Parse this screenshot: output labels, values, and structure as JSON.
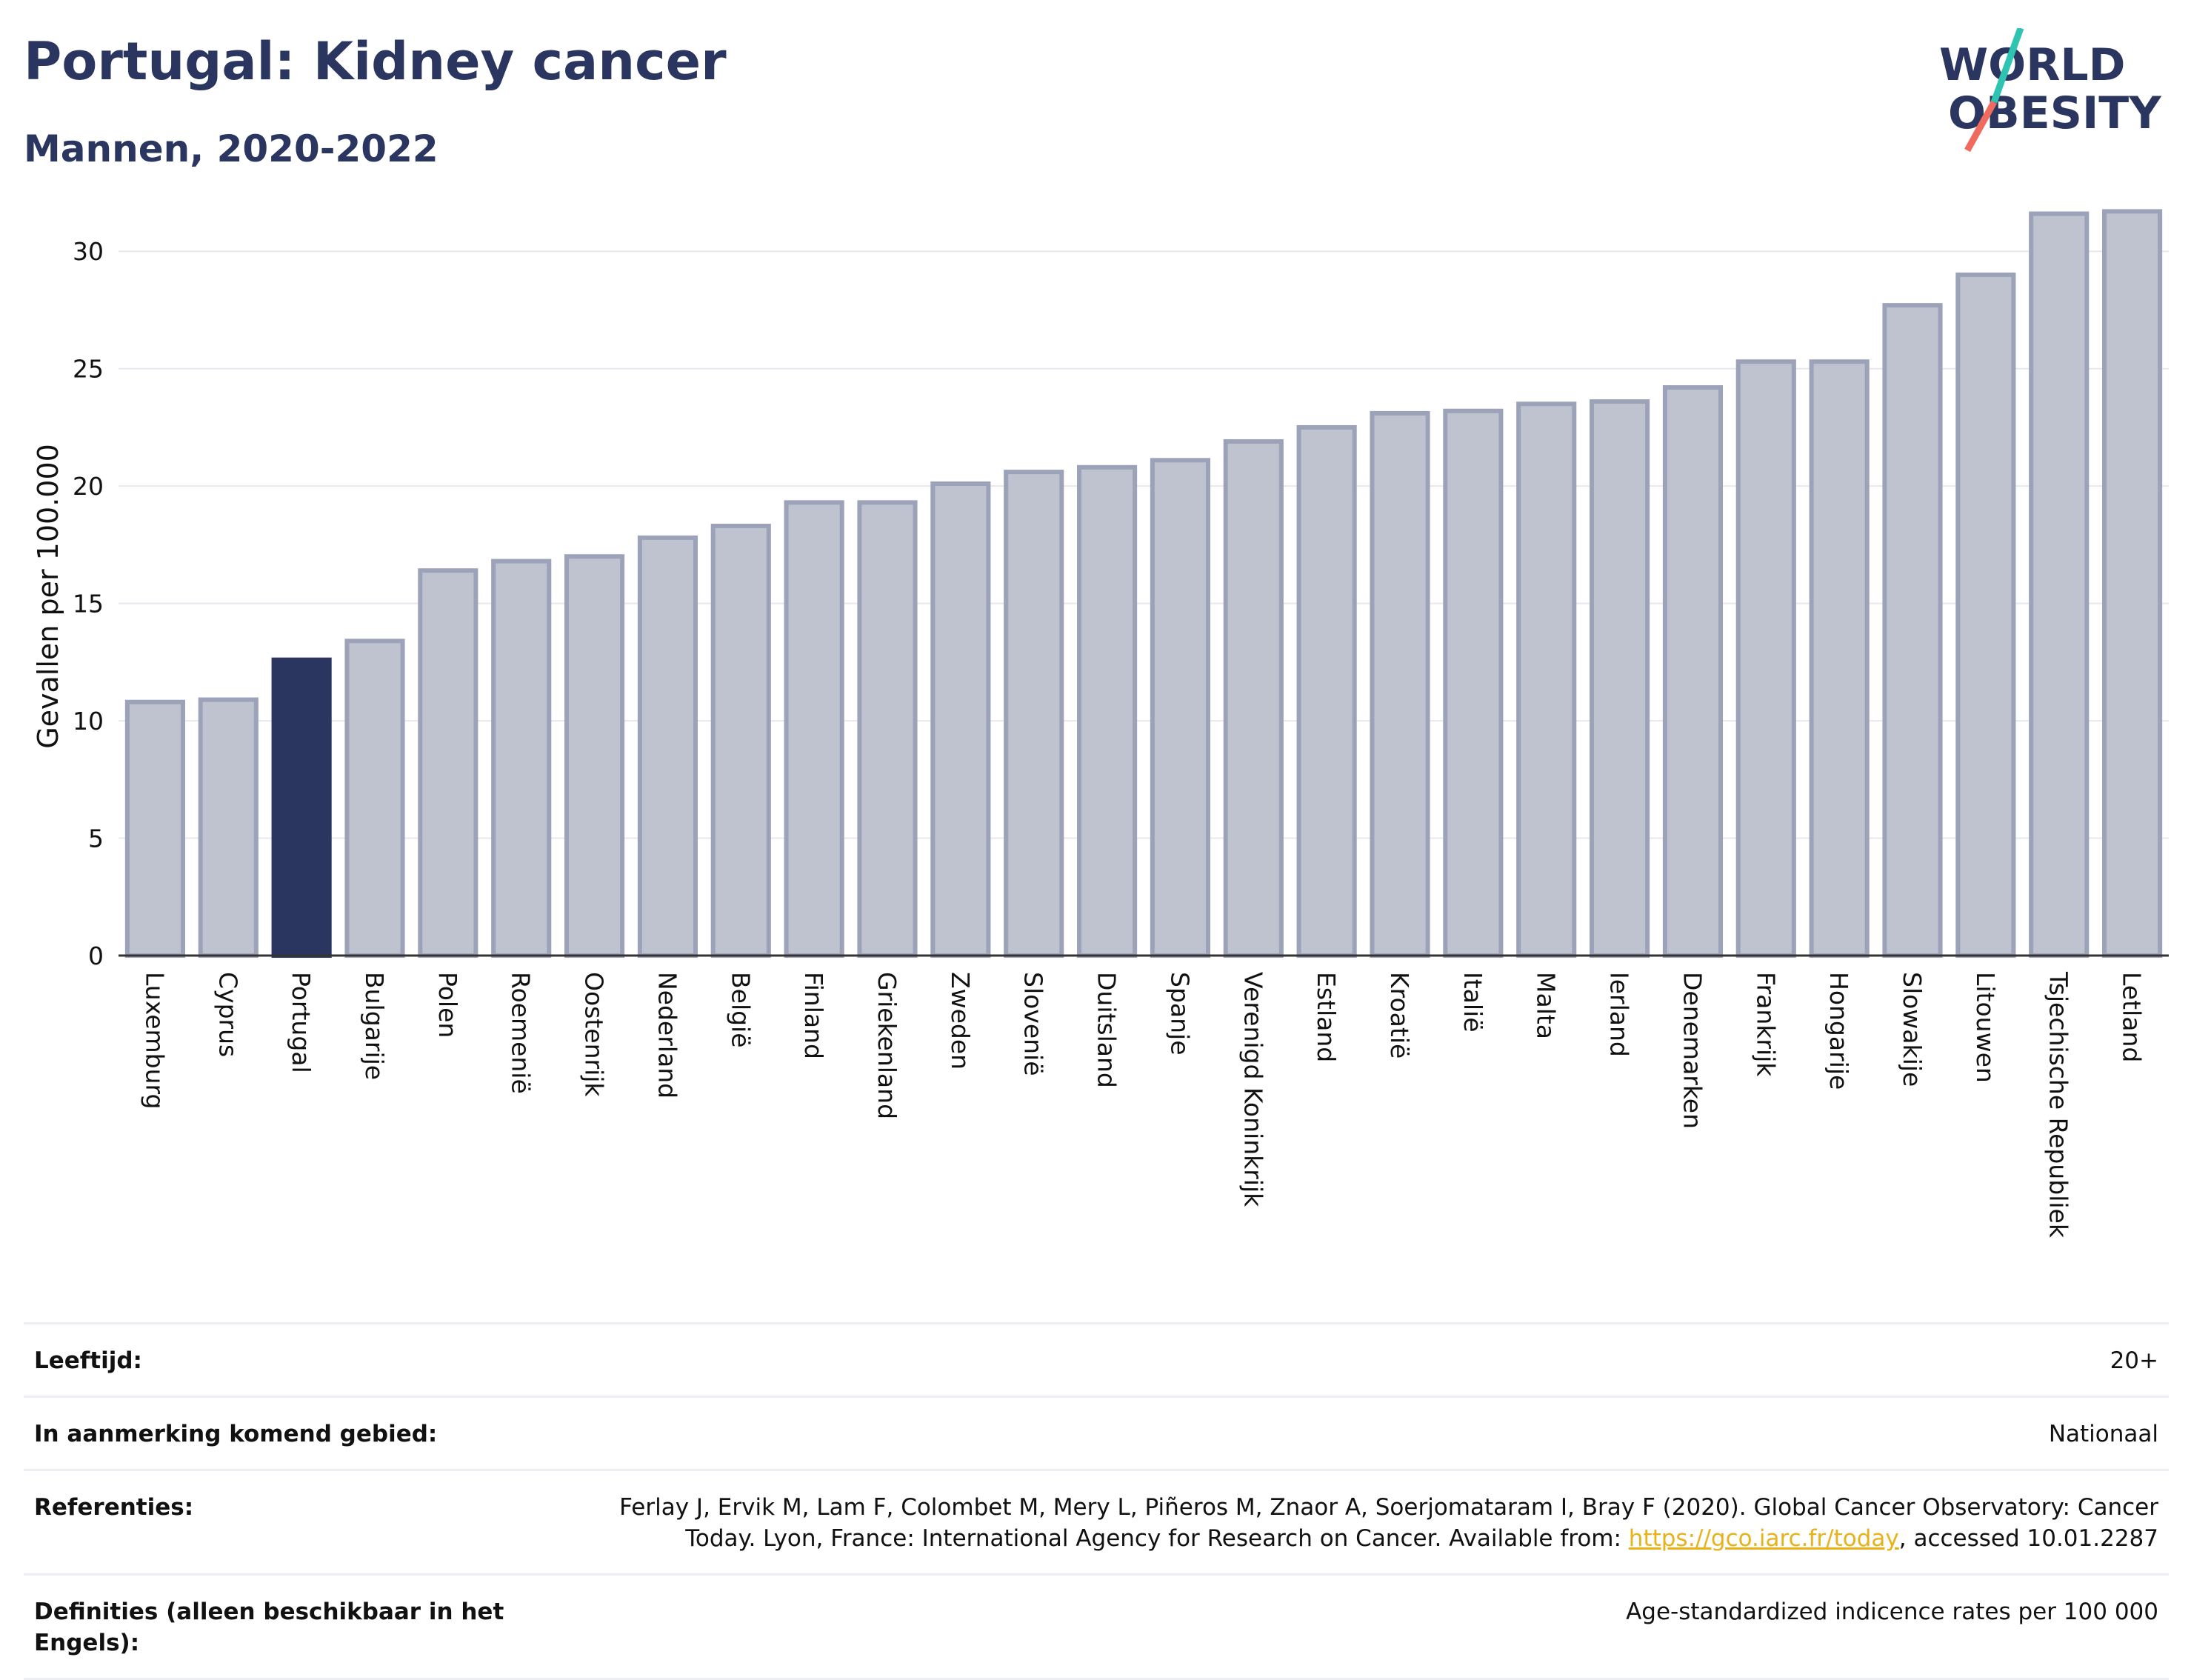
{
  "header": {
    "title": "Portugal: Kidney cancer",
    "subtitle": "Mannen, 2020-2022"
  },
  "logo": {
    "line1": "WORLD",
    "line2": "OBESITY",
    "colors": {
      "text": "#2a3560",
      "slash_top": "#2fc4b2",
      "slash_bottom": "#f06b5d"
    }
  },
  "chart_data": {
    "type": "bar",
    "ylabel": "Gevallen per 100.000",
    "xlabel": "",
    "ylim": [
      0,
      32.5
    ],
    "yticks": [
      0,
      5,
      10,
      15,
      20,
      25,
      30
    ],
    "grid": true,
    "highlight": "Portugal",
    "colors": {
      "bar": "#bfc3d0",
      "bar_edge": "#9ca2b8",
      "highlight": "#2a3560"
    },
    "categories": [
      "Luxemburg",
      "Cyprus",
      "Portugal",
      "Bulgarije",
      "Polen",
      "Roemenië",
      "Oostenrijk",
      "Nederland",
      "België",
      "Finland",
      "Griekenland",
      "Zweden",
      "Slovenië",
      "Duitsland",
      "Spanje",
      "Verenigd Koninkrijk",
      "Estland",
      "Kroatië",
      "Italië",
      "Malta",
      "Ierland",
      "Denemarken",
      "Frankrijk",
      "Hongarije",
      "Slowakije",
      "Litouwen",
      "Tsjechische Republiek",
      "Letland"
    ],
    "values": [
      10.8,
      10.9,
      12.6,
      13.4,
      16.4,
      16.8,
      17.0,
      17.8,
      18.3,
      19.3,
      19.3,
      20.1,
      20.6,
      20.8,
      21.1,
      21.9,
      22.5,
      23.1,
      23.2,
      23.5,
      23.6,
      24.2,
      25.3,
      25.3,
      27.7,
      29.0,
      31.6,
      31.7
    ]
  },
  "meta": {
    "rows": [
      {
        "label": "Leeftijd:",
        "value": "20+"
      },
      {
        "label": "In aanmerking komend gebied:",
        "value": "Nationaal"
      },
      {
        "label": "Referenties:",
        "value_before": "Ferlay J, Ervik M, Lam F, Colombet M, Mery L, Piñeros M, Znaor A, Soerjomataram I, Bray F (2020). Global Cancer Observatory: Cancer Today. Lyon, France: International Agency for Research on Cancer. Available from: ",
        "link": "https://gco.iarc.fr/today",
        "value_after": ", accessed 10.01.2287"
      },
      {
        "label": "Definities (alleen beschikbaar in het Engels):",
        "value": "Age-standardized indicence rates per 100 000"
      }
    ]
  }
}
